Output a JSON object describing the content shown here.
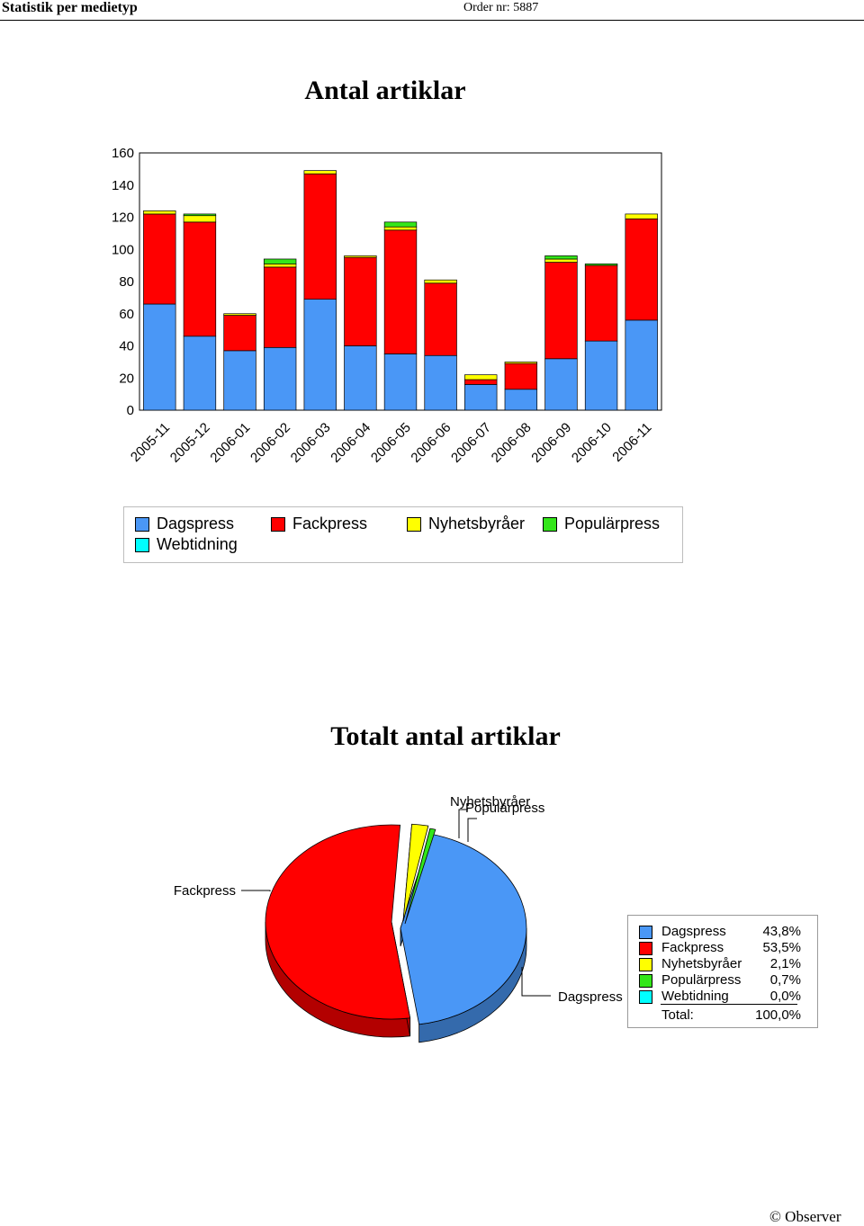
{
  "header": {
    "title": "Statistik per medietyp",
    "order": "Order nr: 5887"
  },
  "colors": {
    "Dagspress": "#4a97f6",
    "Fackpress": "#ff0000",
    "Nyhetsbyråer": "#ffff00",
    "Populärpress": "#33e61a",
    "Webtidning": "#00ffff"
  },
  "chart_data": [
    {
      "type": "bar",
      "stacked": true,
      "title": "Antal artiklar",
      "categories": [
        "2005-11",
        "2005-12",
        "2006-01",
        "2006-02",
        "2006-03",
        "2006-04",
        "2006-05",
        "2006-06",
        "2006-07",
        "2006-08",
        "2006-09",
        "2006-10",
        "2006-11"
      ],
      "series": [
        {
          "name": "Dagspress",
          "values": [
            66,
            46,
            37,
            39,
            69,
            40,
            35,
            34,
            16,
            13,
            32,
            43,
            56
          ]
        },
        {
          "name": "Fackpress",
          "values": [
            56,
            71,
            22,
            50,
            78,
            55,
            77,
            45,
            3,
            16,
            60,
            47,
            63
          ]
        },
        {
          "name": "Nyhetsbyråer",
          "values": [
            2,
            4,
            1,
            2,
            2,
            1,
            2,
            2,
            3,
            1,
            2,
            0,
            3
          ]
        },
        {
          "name": "Populärpress",
          "values": [
            0,
            1,
            0,
            3,
            0,
            0,
            3,
            0,
            0,
            0,
            2,
            1,
            0
          ]
        },
        {
          "name": "Webtidning",
          "values": [
            0,
            0,
            0,
            0,
            0,
            0,
            0,
            0,
            0,
            0,
            0,
            0,
            0
          ]
        }
      ],
      "ylim": [
        0,
        160
      ],
      "yticks": [
        0,
        20,
        40,
        60,
        80,
        100,
        120,
        140,
        160
      ],
      "grid": false,
      "legend": "bottom"
    },
    {
      "type": "pie",
      "title": "Totalt antal artiklar",
      "labels": [
        "Dagspress",
        "Fackpress",
        "Nyhetsbyråer",
        "Populärpress",
        "Webtidning"
      ],
      "values": [
        43.8,
        53.5,
        2.1,
        0.7,
        0.0
      ],
      "value_labels": [
        "43,8%",
        "53,5%",
        "2,1%",
        "0,7%",
        "0,0%"
      ],
      "total_label": "Total:",
      "total_value": "100,0%",
      "legend": "right"
    }
  ],
  "footer": {
    "copyright_symbol": "©",
    "brand": "Observer"
  }
}
